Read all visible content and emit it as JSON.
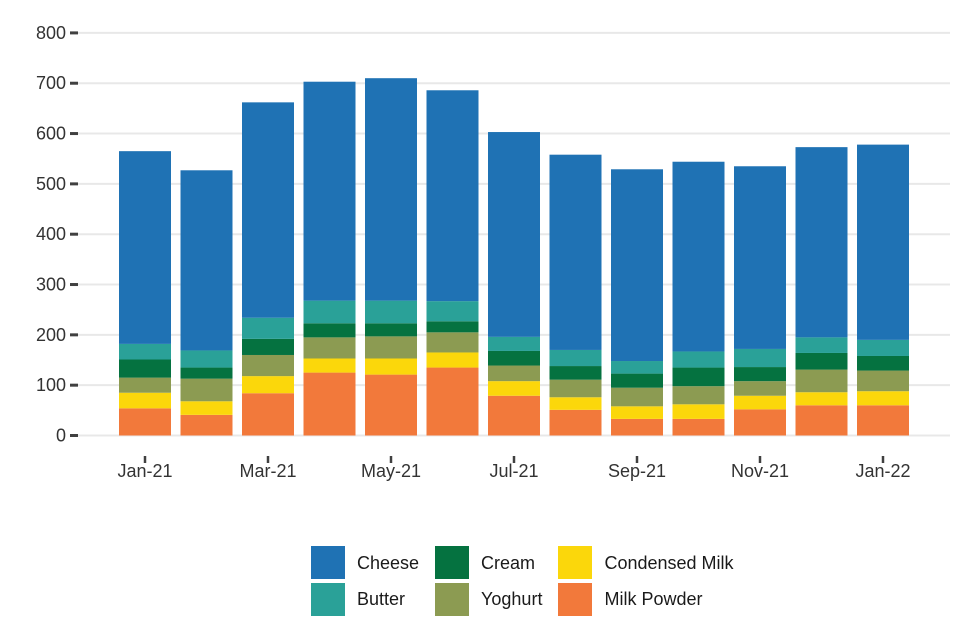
{
  "page": {
    "background": "#ffffff",
    "text_color": "#333333"
  },
  "chart_data": {
    "type": "bar",
    "stacked": true,
    "title": "",
    "xlabel": "",
    "ylabel": "",
    "categories": [
      "Jan-21",
      "Feb-21",
      "Mar-21",
      "Apr-21",
      "May-21",
      "Jun-21",
      "Jul-21",
      "Aug-21",
      "Sep-21",
      "Oct-21",
      "Nov-21",
      "Dec-21",
      "Jan-22"
    ],
    "series": [
      {
        "name": "Milk Powder",
        "color": "#F2793B",
        "values": [
          54,
          41,
          84,
          125,
          121,
          135,
          79,
          51,
          33,
          33,
          52,
          60,
          60
        ]
      },
      {
        "name": "Condensed Milk",
        "color": "#FBD70B",
        "values": [
          31,
          27,
          34,
          28,
          32,
          30,
          29,
          25,
          25,
          29,
          27,
          26,
          28
        ]
      },
      {
        "name": "Yoghurt",
        "color": "#8C9B52",
        "values": [
          30,
          45,
          42,
          42,
          44,
          40,
          31,
          35,
          37,
          36,
          29,
          45,
          41
        ]
      },
      {
        "name": "Cream",
        "color": "#057240",
        "values": [
          36,
          22,
          32,
          28,
          26,
          22,
          29,
          27,
          28,
          37,
          28,
          33,
          29
        ]
      },
      {
        "name": "Butter",
        "color": "#2AA198",
        "values": [
          31,
          34,
          42,
          45,
          45,
          40,
          28,
          32,
          25,
          32,
          36,
          31,
          32
        ]
      },
      {
        "name": "Cheese",
        "color": "#1F72B4",
        "values": [
          383,
          358,
          428,
          435,
          442,
          419,
          407,
          388,
          381,
          377,
          363,
          378,
          388
        ]
      }
    ],
    "totals": [
      565,
      527,
      662,
      703,
      710,
      686,
      603,
      558,
      529,
      544,
      535,
      573,
      578
    ],
    "ylim": [
      0,
      800
    ],
    "yticks": [
      0,
      100,
      200,
      300,
      400,
      500,
      600,
      700,
      800
    ],
    "xtick_labels": [
      "Jan-21",
      "Mar-21",
      "May-21",
      "Jul-21",
      "Sep-21",
      "Nov-21",
      "Jan-22"
    ],
    "xtick_labeled_indices": [
      0,
      2,
      4,
      6,
      8,
      10,
      12
    ],
    "grid": true,
    "gridline_color": "#E8E8E8",
    "tick_color": "#404040",
    "axis_label_color": "#333333",
    "legend_position": "bottom"
  },
  "legend": {
    "items": [
      {
        "label": "Cheese",
        "color": "#1F72B4"
      },
      {
        "label": "Butter",
        "color": "#2AA198"
      },
      {
        "label": "Cream",
        "color": "#057240"
      },
      {
        "label": "Yoghurt",
        "color": "#8C9B52"
      },
      {
        "label": "Condensed Milk",
        "color": "#FBD70B"
      },
      {
        "label": "Milk Powder",
        "color": "#F2793B"
      }
    ]
  }
}
